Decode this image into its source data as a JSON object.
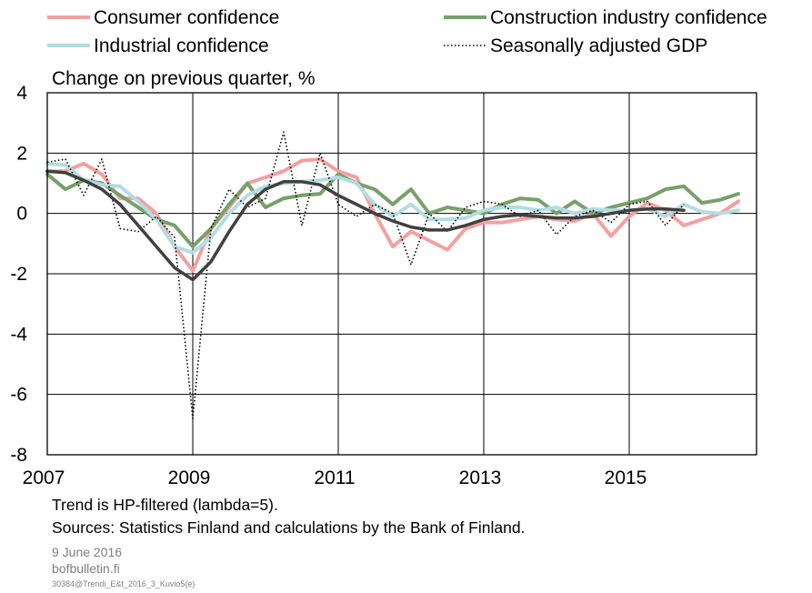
{
  "chart_data": {
    "type": "line",
    "title": "",
    "ylabel": "Change on previous quarter, %",
    "xlabel": "",
    "xlim": [
      2007.0,
      2016.75
    ],
    "ylim": [
      -8,
      4
    ],
    "yticks": [
      -8,
      -6,
      -4,
      -2,
      0,
      2,
      4
    ],
    "xticks": [
      2007,
      2009,
      2011,
      2013,
      2015
    ],
    "x_gridlines": [
      2009,
      2011,
      2013,
      2015
    ],
    "grid": true,
    "legend_position": "top",
    "series": [
      {
        "name": "Consumer confidence",
        "color": "#f4a0a0",
        "style": "solid",
        "x": [
          2007.0,
          2007.25,
          2007.5,
          2007.75,
          2008.0,
          2008.25,
          2008.5,
          2008.75,
          2009.0,
          2009.25,
          2009.5,
          2009.75,
          2010.0,
          2010.25,
          2010.5,
          2010.75,
          2011.0,
          2011.25,
          2011.5,
          2011.75,
          2012.0,
          2012.25,
          2012.5,
          2012.75,
          2013.0,
          2013.25,
          2013.5,
          2013.75,
          2014.0,
          2014.25,
          2014.5,
          2014.75,
          2015.0,
          2015.25,
          2015.5,
          2015.75,
          2016.0,
          2016.25,
          2016.5
        ],
        "values": [
          1.4,
          1.4,
          1.65,
          1.3,
          0.5,
          0.5,
          0.0,
          -1.1,
          -1.9,
          -0.5,
          0.2,
          1.0,
          1.2,
          1.4,
          1.75,
          1.8,
          1.4,
          1.2,
          0.0,
          -1.1,
          -0.6,
          -0.9,
          -1.2,
          -0.5,
          -0.3,
          -0.3,
          -0.2,
          -0.1,
          -0.2,
          -0.25,
          0.0,
          -0.75,
          -0.1,
          0.35,
          0.1,
          -0.4,
          -0.2,
          0.0,
          0.4
        ]
      },
      {
        "name": "Construction industry confidence",
        "color": "#77a06a",
        "style": "solid",
        "x": [
          2007.0,
          2007.25,
          2007.5,
          2007.75,
          2008.0,
          2008.25,
          2008.5,
          2008.75,
          2009.0,
          2009.25,
          2009.5,
          2009.75,
          2010.0,
          2010.25,
          2010.5,
          2010.75,
          2011.0,
          2011.25,
          2011.5,
          2011.75,
          2012.0,
          2012.25,
          2012.5,
          2012.75,
          2013.0,
          2013.25,
          2013.5,
          2013.75,
          2014.0,
          2014.25,
          2014.5,
          2014.75,
          2015.0,
          2015.25,
          2015.5,
          2015.75,
          2016.0,
          2016.25,
          2016.5
        ],
        "values": [
          1.3,
          0.8,
          1.1,
          1.0,
          0.6,
          0.2,
          -0.2,
          -0.4,
          -1.1,
          -0.5,
          0.3,
          1.0,
          0.2,
          0.5,
          0.6,
          0.65,
          1.3,
          1.0,
          0.8,
          0.3,
          0.8,
          0.0,
          0.2,
          0.1,
          0.0,
          0.3,
          0.5,
          0.45,
          0.0,
          0.4,
          0.0,
          0.2,
          0.35,
          0.5,
          0.8,
          0.9,
          0.35,
          0.45,
          0.65
        ]
      },
      {
        "name": "Industrial confidence",
        "color": "#b2dde2",
        "style": "solid",
        "x": [
          2007.0,
          2007.25,
          2007.5,
          2007.75,
          2008.0,
          2008.25,
          2008.5,
          2008.75,
          2009.0,
          2009.25,
          2009.5,
          2009.75,
          2010.0,
          2010.25,
          2010.5,
          2010.75,
          2011.0,
          2011.25,
          2011.5,
          2011.75,
          2012.0,
          2012.25,
          2012.5,
          2012.75,
          2013.0,
          2013.25,
          2013.5,
          2013.75,
          2014.0,
          2014.25,
          2014.5,
          2014.75,
          2015.0,
          2015.25,
          2015.5,
          2015.75,
          2016.0,
          2016.25,
          2016.5
        ],
        "values": [
          1.65,
          1.6,
          1.1,
          0.95,
          0.9,
          0.4,
          -0.2,
          -1.1,
          -1.3,
          -0.8,
          0.0,
          0.6,
          0.9,
          1.0,
          1.05,
          1.1,
          1.2,
          1.0,
          0.3,
          -0.1,
          0.3,
          -0.2,
          -0.2,
          -0.15,
          0.1,
          0.2,
          0.2,
          0.1,
          0.2,
          0.0,
          0.15,
          0.1,
          0.1,
          0.15,
          -0.1,
          0.3,
          0.05,
          0.0,
          0.1
        ]
      },
      {
        "name": "Seasonally adjusted GDP",
        "color": "#000000",
        "style": "dotted",
        "x": [
          2007.0,
          2007.25,
          2007.5,
          2007.75,
          2008.0,
          2008.25,
          2008.5,
          2008.75,
          2009.0,
          2009.25,
          2009.5,
          2009.75,
          2010.0,
          2010.25,
          2010.5,
          2010.75,
          2011.0,
          2011.25,
          2011.5,
          2011.75,
          2012.0,
          2012.25,
          2012.5,
          2012.75,
          2013.0,
          2013.25,
          2013.5,
          2013.75,
          2014.0,
          2014.25,
          2014.5,
          2014.75,
          2015.0,
          2015.25,
          2015.5,
          2015.75
        ],
        "values": [
          1.7,
          1.8,
          0.6,
          1.8,
          -0.5,
          -0.6,
          -0.1,
          -0.8,
          -6.8,
          -0.5,
          0.8,
          0.2,
          0.5,
          2.7,
          -0.4,
          2.0,
          0.3,
          -0.1,
          0.3,
          0.0,
          -1.7,
          0.0,
          -0.6,
          0.2,
          0.4,
          0.3,
          -0.1,
          0.1,
          -0.7,
          -0.1,
          0.1,
          -0.3,
          0.3,
          0.4,
          -0.4,
          0.3
        ]
      },
      {
        "name": "Trend",
        "legend": false,
        "color": "#404040",
        "style": "solid-thick",
        "x": [
          2007.0,
          2007.25,
          2007.5,
          2007.75,
          2008.0,
          2008.25,
          2008.5,
          2008.75,
          2009.0,
          2009.25,
          2009.5,
          2009.75,
          2010.0,
          2010.25,
          2010.5,
          2010.75,
          2011.0,
          2011.25,
          2011.5,
          2011.75,
          2012.0,
          2012.25,
          2012.5,
          2012.75,
          2013.0,
          2013.25,
          2013.5,
          2013.75,
          2014.0,
          2014.25,
          2014.5,
          2014.75,
          2015.0,
          2015.25,
          2015.5,
          2015.75
        ],
        "values": [
          1.4,
          1.35,
          1.1,
          0.8,
          0.3,
          -0.4,
          -1.1,
          -1.8,
          -2.2,
          -1.6,
          -0.6,
          0.3,
          0.8,
          1.05,
          1.05,
          0.95,
          0.6,
          0.3,
          0.0,
          -0.25,
          -0.45,
          -0.55,
          -0.55,
          -0.4,
          -0.2,
          -0.1,
          -0.05,
          -0.1,
          -0.15,
          -0.15,
          -0.1,
          0.0,
          0.1,
          0.15,
          0.15,
          0.1
        ]
      }
    ]
  },
  "notes": {
    "trend": "Trend is HP-filtered (lambda=5).",
    "sources": "Sources: Statistics Finland and calculations by the Bank of Finland."
  },
  "footer": {
    "date": "9 June 2016",
    "site": "bofbulletin.fi",
    "code": "30384@Trendi_E&t_2016_3_Kuvio5(e)"
  }
}
